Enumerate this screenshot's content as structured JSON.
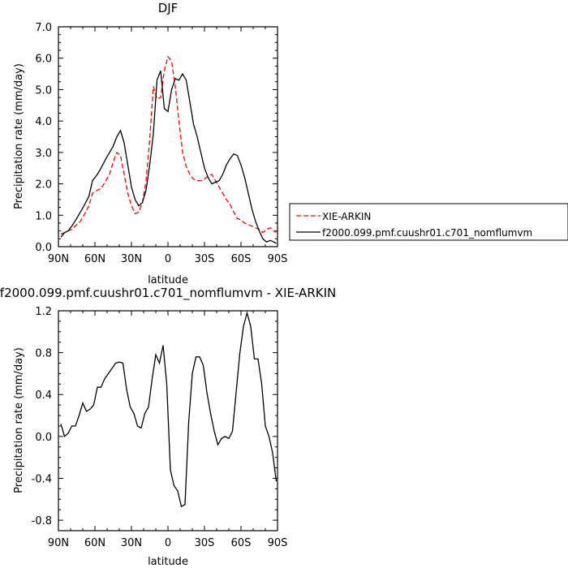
{
  "chart_data": [
    {
      "type": "line",
      "title": "DJF",
      "xlabel": "latitude",
      "ylabel": "Precipitation rate (mm/day)",
      "xlim": [
        90,
        -90
      ],
      "ylim": [
        0,
        7
      ],
      "x_ticks": [
        90,
        60,
        30,
        0,
        -30,
        -60,
        -90
      ],
      "x_tick_labels": [
        "90N",
        "60N",
        "30N",
        "0",
        "30S",
        "60S",
        "90S"
      ],
      "y_ticks": [
        0,
        1,
        2,
        3,
        4,
        5,
        6,
        7
      ],
      "y_tick_labels": [
        "0.0",
        "1.0",
        "2.0",
        "3.0",
        "4.0",
        "5.0",
        "6.0",
        "7.0"
      ],
      "legend_position": "right",
      "series": [
        {
          "name": "XIE-ARKIN",
          "color": "#ff0000",
          "dash": "dashed",
          "x": [
            88,
            85,
            82,
            79,
            75,
            72,
            69,
            65,
            62,
            58,
            55,
            51,
            48,
            45,
            42,
            39,
            36,
            33,
            30,
            27,
            24,
            21,
            18,
            15,
            12,
            9,
            6,
            3,
            0,
            -3,
            -6,
            -9,
            -12,
            -15,
            -18,
            -21,
            -24,
            -27,
            -30,
            -33,
            -36,
            -39,
            -42,
            -45,
            -48,
            -51,
            -54,
            -57,
            -60,
            -63,
            -66,
            -69,
            -72,
            -75,
            -78,
            -81,
            -84,
            -87,
            -89
          ],
          "y": [
            0.4,
            0.45,
            0.5,
            0.55,
            0.7,
            0.8,
            1.0,
            1.3,
            1.7,
            1.8,
            1.85,
            2.1,
            2.3,
            2.7,
            3.0,
            2.9,
            2.3,
            1.7,
            1.3,
            1.05,
            1.1,
            1.4,
            2.1,
            3.4,
            5.1,
            4.7,
            4.75,
            5.6,
            6.05,
            5.9,
            5.1,
            4.0,
            3.0,
            2.55,
            2.3,
            2.15,
            2.1,
            2.1,
            2.15,
            2.25,
            2.3,
            2.1,
            1.9,
            1.7,
            1.5,
            1.35,
            1.1,
            0.9,
            0.85,
            0.75,
            0.7,
            0.65,
            0.6,
            0.55,
            0.45,
            0.55,
            0.6,
            0.5,
            0.45
          ]
        },
        {
          "name": "f2000.099.pmf.cuushr01.c701_nomflumvm",
          "color": "#000000",
          "dash": "solid",
          "x": [
            88,
            85,
            82,
            79,
            75,
            72,
            69,
            65,
            62,
            58,
            55,
            51,
            48,
            45,
            42,
            39,
            36,
            33,
            30,
            27,
            24,
            21,
            18,
            15,
            12,
            9,
            6,
            3,
            0,
            -3,
            -6,
            -9,
            -12,
            -15,
            -18,
            -21,
            -24,
            -27,
            -30,
            -33,
            -36,
            -39,
            -42,
            -45,
            -48,
            -51,
            -54,
            -57,
            -60,
            -63,
            -66,
            -69,
            -72,
            -75,
            -78,
            -81,
            -84,
            -87,
            -89
          ],
          "y": [
            0.3,
            0.45,
            0.5,
            0.65,
            0.9,
            1.1,
            1.3,
            1.6,
            2.1,
            2.3,
            2.5,
            2.8,
            3.0,
            3.2,
            3.5,
            3.7,
            3.3,
            2.6,
            1.9,
            1.5,
            1.3,
            1.4,
            1.8,
            2.6,
            3.6,
            5.3,
            5.6,
            4.4,
            4.3,
            5.0,
            5.35,
            5.3,
            5.5,
            5.3,
            4.6,
            3.9,
            3.5,
            3.0,
            2.5,
            2.2,
            2.0,
            2.05,
            2.1,
            2.3,
            2.6,
            2.8,
            2.95,
            2.9,
            2.6,
            2.2,
            1.7,
            1.2,
            0.8,
            0.5,
            0.25,
            0.15,
            0.2,
            0.15,
            0.1
          ]
        }
      ]
    },
    {
      "type": "line",
      "title": "f2000.099.pmf.cuushr01.c701_nomflumvm - XIE-ARKIN",
      "xlabel": "latitude",
      "ylabel": "Precipitation rate (mm/day)",
      "xlim": [
        90,
        -90
      ],
      "ylim": [
        -0.9,
        1.2
      ],
      "x_ticks": [
        90,
        60,
        30,
        0,
        -30,
        -60,
        -90
      ],
      "x_tick_labels": [
        "90N",
        "60N",
        "30N",
        "0",
        "30S",
        "60S",
        "90S"
      ],
      "y_ticks": [
        -0.8,
        -0.4,
        0.0,
        0.4,
        0.8,
        1.2
      ],
      "y_tick_labels": [
        "-0.8",
        "-0.4",
        "0.0",
        "0.4",
        "0.8",
        "1.2"
      ],
      "series": [
        {
          "color": "#000000",
          "dash": "solid",
          "x": [
            88,
            85,
            82,
            79,
            76,
            73,
            70,
            67,
            64,
            61,
            58,
            55,
            52,
            49,
            46,
            43,
            40,
            37,
            34,
            31,
            28,
            25,
            22,
            19,
            16,
            13,
            10,
            7,
            4,
            1,
            -2,
            -5,
            -8,
            -11,
            -14,
            -17,
            -20,
            -23,
            -26,
            -29,
            -32,
            -35,
            -38,
            -41,
            -44,
            -47,
            -50,
            -53,
            -56,
            -59,
            -62,
            -65,
            -68,
            -71,
            -74,
            -77,
            -80,
            -83,
            -86,
            -89
          ],
          "y": [
            0.12,
            0.0,
            0.03,
            0.1,
            0.1,
            0.2,
            0.32,
            0.24,
            0.26,
            0.3,
            0.47,
            0.47,
            0.55,
            0.6,
            0.65,
            0.7,
            0.71,
            0.7,
            0.45,
            0.28,
            0.22,
            0.1,
            0.08,
            0.22,
            0.28,
            0.55,
            0.78,
            0.7,
            0.87,
            0.5,
            -0.32,
            -0.47,
            -0.52,
            -0.67,
            -0.65,
            0.13,
            0.6,
            0.76,
            0.76,
            0.68,
            0.42,
            0.22,
            0.05,
            -0.08,
            -0.02,
            0.0,
            -0.02,
            0.05,
            0.42,
            0.79,
            1.05,
            1.18,
            1.05,
            0.74,
            0.74,
            0.5,
            0.1,
            0.0,
            -0.16,
            -0.43
          ]
        }
      ]
    }
  ]
}
